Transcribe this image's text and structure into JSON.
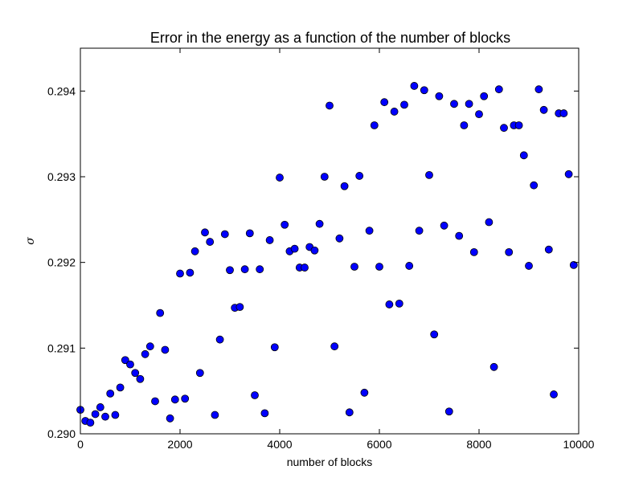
{
  "chart_data": {
    "type": "scatter",
    "title": "Error in the energy as a function of the number of blocks",
    "xlabel": "number of blocks",
    "ylabel": "σ",
    "xlim": [
      0,
      10000
    ],
    "ylim": [
      0.29,
      0.2945
    ],
    "xticks": [
      0,
      2000,
      4000,
      6000,
      8000,
      10000
    ],
    "xtick_labels": [
      "0",
      "2000",
      "4000",
      "6000",
      "8000",
      "10000"
    ],
    "yticks": [
      0.29,
      0.291,
      0.292,
      0.293,
      0.294
    ],
    "ytick_labels": [
      "0.290",
      "0.291",
      "0.292",
      "0.293",
      "0.294"
    ],
    "grid": false,
    "marker_color": "#0000ff",
    "series": [
      {
        "x": [
          0,
          100,
          200,
          300,
          400,
          500,
          600,
          700,
          800,
          900,
          1000,
          1100,
          1200,
          1300,
          1400,
          1500,
          1600,
          1700,
          1800,
          1900,
          2000,
          2100,
          2200,
          2300,
          2400,
          2500,
          2600,
          2700,
          2800,
          2900,
          3000,
          3100,
          3200,
          3300,
          3400,
          3500,
          3600,
          3700,
          3800,
          3900,
          4000,
          4100,
          4200,
          4300,
          4400,
          4500,
          4600,
          4700,
          4800,
          4900,
          5000,
          5100,
          5200,
          5300,
          5400,
          5500,
          5600,
          5700,
          5800,
          5900,
          6000,
          6100,
          6200,
          6300,
          6400,
          6500,
          6600,
          6700,
          6800,
          6900,
          7000,
          7100,
          7200,
          7300,
          7400,
          7500,
          7600,
          7700,
          7800,
          7900,
          8000,
          8100,
          8200,
          8300,
          8400,
          8500,
          8600,
          8700,
          8800,
          8900,
          9000,
          9100,
          9200,
          9300,
          9400,
          9500,
          9600,
          9700,
          9800,
          9900
        ],
        "y": [
          0.29028,
          0.29015,
          0.29013,
          0.29023,
          0.29031,
          0.2902,
          0.29047,
          0.29022,
          0.29054,
          0.29086,
          0.29081,
          0.29071,
          0.29064,
          0.29093,
          0.29102,
          0.29038,
          0.29141,
          0.29098,
          0.29018,
          0.2904,
          0.29187,
          0.29041,
          0.29188,
          0.29213,
          0.29071,
          0.29235,
          0.29224,
          0.29022,
          0.2911,
          0.29233,
          0.29191,
          0.29147,
          0.29148,
          0.29192,
          0.29234,
          0.29045,
          0.29192,
          0.29024,
          0.29226,
          0.29101,
          0.29299,
          0.29244,
          0.29213,
          0.29216,
          0.29194,
          0.29194,
          0.29218,
          0.29214,
          0.29245,
          0.293,
          0.29383,
          0.29102,
          0.29228,
          0.29289,
          0.29025,
          0.29195,
          0.29301,
          0.29048,
          0.29237,
          0.2936,
          0.29195,
          0.29387,
          0.29151,
          0.29376,
          0.29152,
          0.29384,
          0.29196,
          0.29406,
          0.29237,
          0.29401,
          0.29302,
          0.29116,
          0.29394,
          0.29243,
          0.29026,
          0.29385,
          0.29231,
          0.2936,
          0.29385,
          0.29212,
          0.29373,
          0.29394,
          0.29247,
          0.29078,
          0.29402,
          0.29357,
          0.29212,
          0.2936,
          0.2936,
          0.29325,
          0.29196,
          0.2929,
          0.29402,
          0.29378,
          0.29215,
          0.29046,
          0.29374,
          0.29374,
          0.29303,
          0.29197
        ]
      }
    ]
  }
}
